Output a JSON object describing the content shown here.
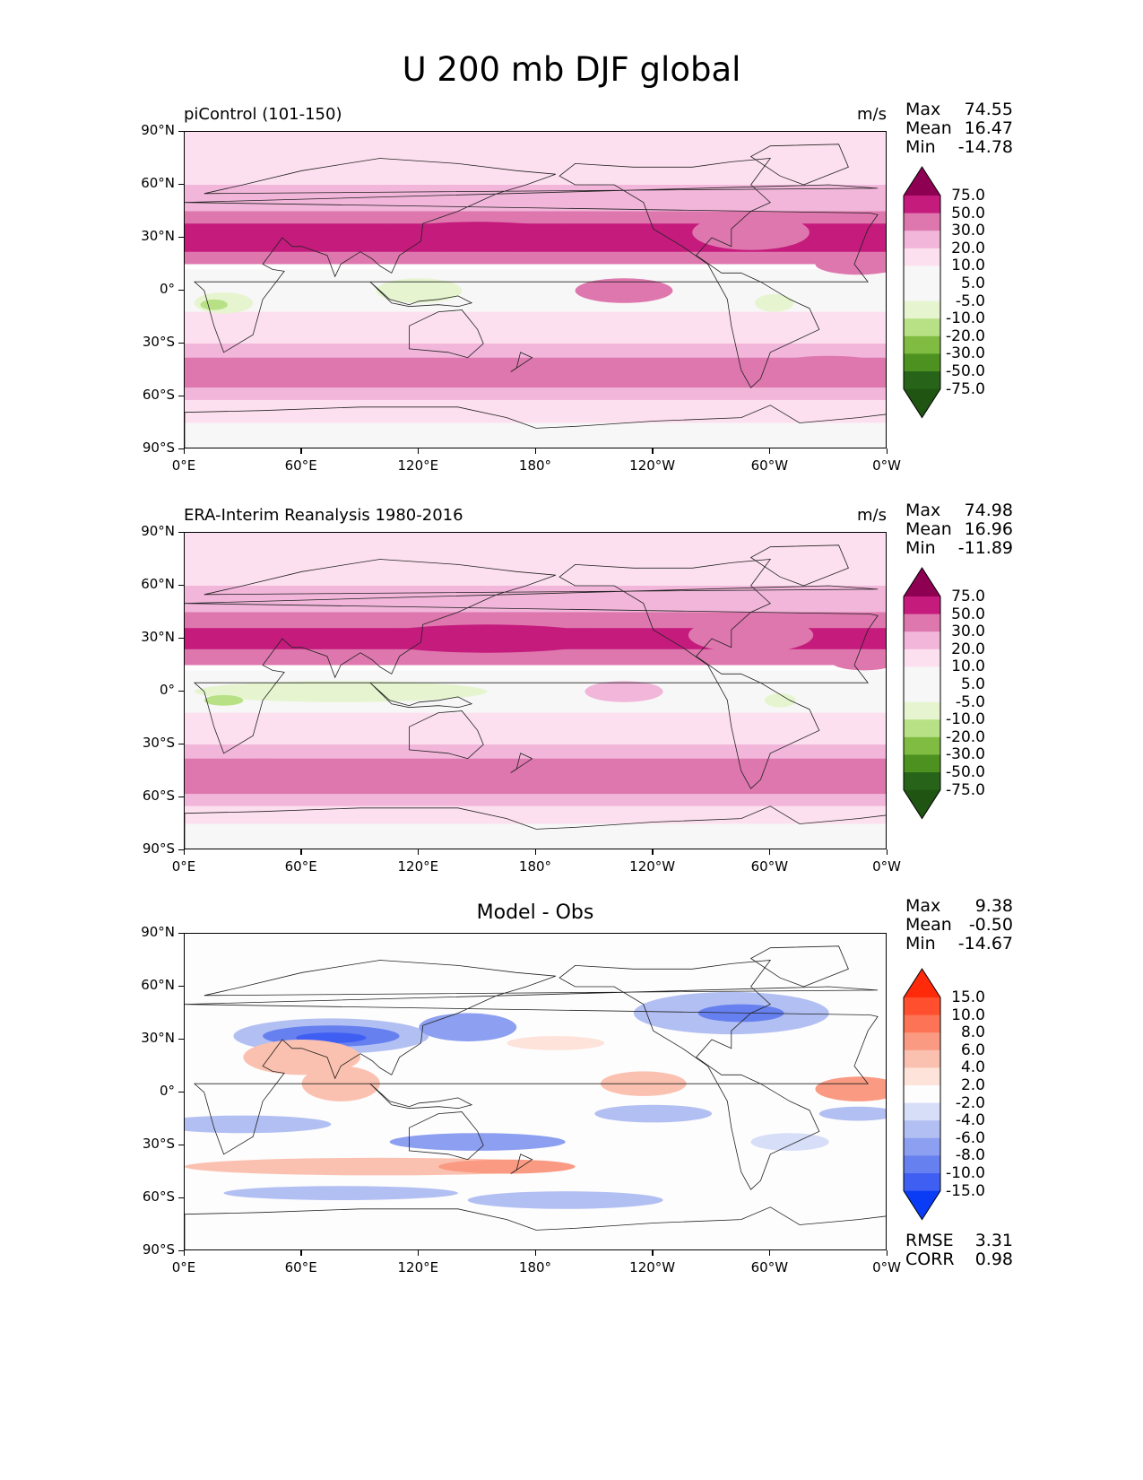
{
  "figure": {
    "title": "U 200 mb DJF global"
  },
  "chart_data": [
    {
      "type": "heatmap",
      "panel_title": "piControl (101-150)",
      "units": "m/s",
      "stats": {
        "max_label": "Max",
        "max": "74.55",
        "mean_label": "Mean",
        "mean": "16.47",
        "min_label": "Min",
        "min": "-14.78"
      },
      "x_ticks": [
        "0°E",
        "60°E",
        "120°E",
        "180°",
        "120°W",
        "60°W",
        "0°W"
      ],
      "y_ticks": [
        "90°N",
        "60°N",
        "30°N",
        "0°",
        "30°S",
        "60°S",
        "90°S"
      ],
      "colorbar": {
        "levels": [
          "75.0",
          "50.0",
          "30.0",
          "20.0",
          "10.0",
          "5.0",
          "-5.0",
          "-10.0",
          "-20.0",
          "-30.0",
          "-50.0",
          "-75.0"
        ],
        "colors": [
          "#8e0152",
          "#c51b7d",
          "#de77ae",
          "#f1b6da",
          "#fde0ef",
          "#f7f7f7",
          "#f7f7f7",
          "#e6f5d0",
          "#b8e186",
          "#7fbc41",
          "#4d9221",
          "#276419",
          "#1f5412"
        ]
      },
      "bands": [
        {
          "lat": [
            60,
            90
          ],
          "color": "#fde0ef"
        },
        {
          "lat": [
            45,
            60
          ],
          "color": "#f1b6da"
        },
        {
          "lat": [
            15,
            45
          ],
          "color": "#de77ae"
        },
        {
          "lat": [
            22,
            38
          ],
          "color": "#c51b7d"
        },
        {
          "lat": [
            -12,
            12
          ],
          "color": "#f7f7f7"
        },
        {
          "lat": [
            -30,
            -12
          ],
          "color": "#fde0ef"
        },
        {
          "lat": [
            -62,
            -30
          ],
          "color": "#f1b6da"
        },
        {
          "lat": [
            -55,
            -38
          ],
          "color": "#de77ae"
        },
        {
          "lat": [
            -62,
            -55
          ],
          "color": "#f1b6da"
        },
        {
          "lat": [
            -75,
            -62
          ],
          "color": "#fde0ef"
        },
        {
          "lat": [
            -90,
            -75
          ],
          "color": "#f7f7f7"
        }
      ],
      "blobs": [
        {
          "lon": 150,
          "lat": 31,
          "rlon": 50,
          "rlat": 8,
          "color": "#c51b7d"
        },
        {
          "lon": 290,
          "lat": 33,
          "rlon": 30,
          "rlat": 10,
          "color": "#de77ae"
        },
        {
          "lon": 345,
          "lat": 15,
          "rlon": 22,
          "rlat": 6,
          "color": "#de77ae"
        },
        {
          "lon": 225,
          "lat": 0,
          "rlon": 25,
          "rlat": 7,
          "color": "#de77ae"
        },
        {
          "lon": 20,
          "lat": -7,
          "rlon": 15,
          "rlat": 6,
          "color": "#e6f5d0"
        },
        {
          "lon": 15,
          "lat": -8,
          "rlon": 7,
          "rlat": 3,
          "color": "#b8e186"
        },
        {
          "lon": 120,
          "lat": 0,
          "rlon": 22,
          "rlat": 7,
          "color": "#e6f5d0"
        },
        {
          "lon": 302,
          "lat": -7,
          "rlon": 10,
          "rlat": 5,
          "color": "#e6f5d0"
        },
        {
          "lon": 330,
          "lat": -43,
          "rlon": 30,
          "rlat": 6,
          "color": "#de77ae"
        }
      ],
      "rmse": null,
      "corr": null
    },
    {
      "type": "heatmap",
      "panel_title": "ERA-Interim Reanalysis 1980-2016",
      "units": "m/s",
      "stats": {
        "max_label": "Max",
        "max": "74.98",
        "mean_label": "Mean",
        "mean": "16.96",
        "min_label": "Min",
        "min": "-11.89"
      },
      "x_ticks": [
        "0°E",
        "60°E",
        "120°E",
        "180°",
        "120°W",
        "60°W",
        "0°W"
      ],
      "y_ticks": [
        "90°N",
        "60°N",
        "30°N",
        "0°",
        "30°S",
        "60°S",
        "90°S"
      ],
      "colorbar": {
        "levels": [
          "75.0",
          "50.0",
          "30.0",
          "20.0",
          "10.0",
          "5.0",
          "-5.0",
          "-10.0",
          "-20.0",
          "-30.0",
          "-50.0",
          "-75.0"
        ],
        "colors": [
          "#8e0152",
          "#c51b7d",
          "#de77ae",
          "#f1b6da",
          "#fde0ef",
          "#f7f7f7",
          "#f7f7f7",
          "#e6f5d0",
          "#b8e186",
          "#7fbc41",
          "#4d9221",
          "#276419",
          "#1f5412"
        ]
      },
      "bands": [
        {
          "lat": [
            60,
            90
          ],
          "color": "#fde0ef"
        },
        {
          "lat": [
            45,
            60
          ],
          "color": "#f1b6da"
        },
        {
          "lat": [
            15,
            45
          ],
          "color": "#de77ae"
        },
        {
          "lat": [
            24,
            36
          ],
          "color": "#c51b7d"
        },
        {
          "lat": [
            -12,
            12
          ],
          "color": "#f7f7f7"
        },
        {
          "lat": [
            -30,
            -12
          ],
          "color": "#fde0ef"
        },
        {
          "lat": [
            -65,
            -30
          ],
          "color": "#f1b6da"
        },
        {
          "lat": [
            -58,
            -38
          ],
          "color": "#de77ae"
        },
        {
          "lat": [
            -75,
            -65
          ],
          "color": "#fde0ef"
        },
        {
          "lat": [
            -90,
            -75
          ],
          "color": "#f7f7f7"
        }
      ],
      "blobs": [
        {
          "lon": 155,
          "lat": 30,
          "rlon": 60,
          "rlat": 8,
          "color": "#c51b7d"
        },
        {
          "lon": 290,
          "lat": 32,
          "rlon": 32,
          "rlat": 10,
          "color": "#de77ae"
        },
        {
          "lon": 348,
          "lat": 18,
          "rlon": 18,
          "rlat": 6,
          "color": "#de77ae"
        },
        {
          "lon": 225,
          "lat": 0,
          "rlon": 20,
          "rlat": 6,
          "color": "#f1b6da"
        },
        {
          "lon": 80,
          "lat": 0,
          "rlon": 75,
          "rlat": 6,
          "color": "#e6f5d0"
        },
        {
          "lon": 20,
          "lat": -5,
          "rlon": 10,
          "rlat": 3,
          "color": "#b8e186"
        },
        {
          "lon": 305,
          "lat": -5,
          "rlon": 8,
          "rlat": 4,
          "color": "#e6f5d0"
        },
        {
          "lon": 40,
          "lat": -46,
          "rlon": 45,
          "rlat": 8,
          "color": "#de77ae"
        },
        {
          "lon": 335,
          "lat": -46,
          "rlon": 28,
          "rlat": 6,
          "color": "#de77ae"
        }
      ],
      "rmse": null,
      "corr": null
    },
    {
      "type": "heatmap",
      "panel_title": "Model - Obs",
      "units": "",
      "stats": {
        "max_label": "Max",
        "max": "9.38",
        "mean_label": "Mean",
        "mean": "-0.50",
        "min_label": "Min",
        "min": "-14.67"
      },
      "x_ticks": [
        "0°E",
        "60°E",
        "120°E",
        "180°",
        "120°W",
        "60°W",
        "0°W"
      ],
      "y_ticks": [
        "90°N",
        "60°N",
        "30°N",
        "0°",
        "30°S",
        "60°S",
        "90°S"
      ],
      "colorbar": {
        "levels": [
          "15.0",
          "10.0",
          "8.0",
          "6.0",
          "4.0",
          "2.0",
          "-2.0",
          "-4.0",
          "-6.0",
          "-8.0",
          "-10.0",
          "-15.0"
        ],
        "colors": [
          "#ff2a0a",
          "#ff4f2e",
          "#fc7355",
          "#fa9a82",
          "#fbc1b0",
          "#fde3da",
          "#fdfdfd",
          "#d7def8",
          "#b2bff2",
          "#8c9ff0",
          "#6680f0",
          "#3f5ff2",
          "#0a3cf5"
        ]
      },
      "bands": [
        {
          "lat": [
            -90,
            90
          ],
          "color": "#fdfdfd"
        }
      ],
      "blobs": [
        {
          "lon": 75,
          "lat": 32,
          "rlon": 50,
          "rlat": 10,
          "color": "#b2bff2"
        },
        {
          "lon": 75,
          "lat": 32,
          "rlon": 35,
          "rlat": 6,
          "color": "#6680f0"
        },
        {
          "lon": 75,
          "lat": 31,
          "rlon": 18,
          "rlat": 3,
          "color": "#3f5ff2"
        },
        {
          "lon": 145,
          "lat": 37,
          "rlon": 25,
          "rlat": 8,
          "color": "#8c9ff0"
        },
        {
          "lon": 280,
          "lat": 45,
          "rlon": 50,
          "rlat": 12,
          "color": "#b2bff2"
        },
        {
          "lon": 285,
          "lat": 45,
          "rlon": 22,
          "rlat": 5,
          "color": "#6680f0"
        },
        {
          "lon": 60,
          "lat": 20,
          "rlon": 30,
          "rlat": 10,
          "color": "#fbc1b0"
        },
        {
          "lon": 80,
          "lat": 5,
          "rlon": 20,
          "rlat": 10,
          "color": "#fbc1b0"
        },
        {
          "lon": 190,
          "lat": 28,
          "rlon": 25,
          "rlat": 4,
          "color": "#fde3da"
        },
        {
          "lon": 235,
          "lat": 5,
          "rlon": 22,
          "rlat": 7,
          "color": "#fbc1b0"
        },
        {
          "lon": 345,
          "lat": 2,
          "rlon": 22,
          "rlat": 7,
          "color": "#fa9a82"
        },
        {
          "lon": 30,
          "lat": -18,
          "rlon": 45,
          "rlat": 5,
          "color": "#b2bff2"
        },
        {
          "lon": 150,
          "lat": -28,
          "rlon": 45,
          "rlat": 5,
          "color": "#8c9ff0"
        },
        {
          "lon": 240,
          "lat": -12,
          "rlon": 30,
          "rlat": 5,
          "color": "#b2bff2"
        },
        {
          "lon": 345,
          "lat": -12,
          "rlon": 20,
          "rlat": 4,
          "color": "#b2bff2"
        },
        {
          "lon": 100,
          "lat": -42,
          "rlon": 100,
          "rlat": 5,
          "color": "#fbc1b0"
        },
        {
          "lon": 165,
          "lat": -42,
          "rlon": 35,
          "rlat": 4,
          "color": "#fa9a82"
        },
        {
          "lon": 80,
          "lat": -57,
          "rlon": 60,
          "rlat": 4,
          "color": "#b2bff2"
        },
        {
          "lon": 195,
          "lat": -61,
          "rlon": 50,
          "rlat": 5,
          "color": "#b2bff2"
        },
        {
          "lon": 310,
          "lat": -28,
          "rlon": 20,
          "rlat": 5,
          "color": "#d7def8"
        }
      ],
      "rmse": {
        "label": "RMSE",
        "value": "3.31"
      },
      "corr": {
        "label": "CORR",
        "value": "0.98"
      }
    }
  ]
}
